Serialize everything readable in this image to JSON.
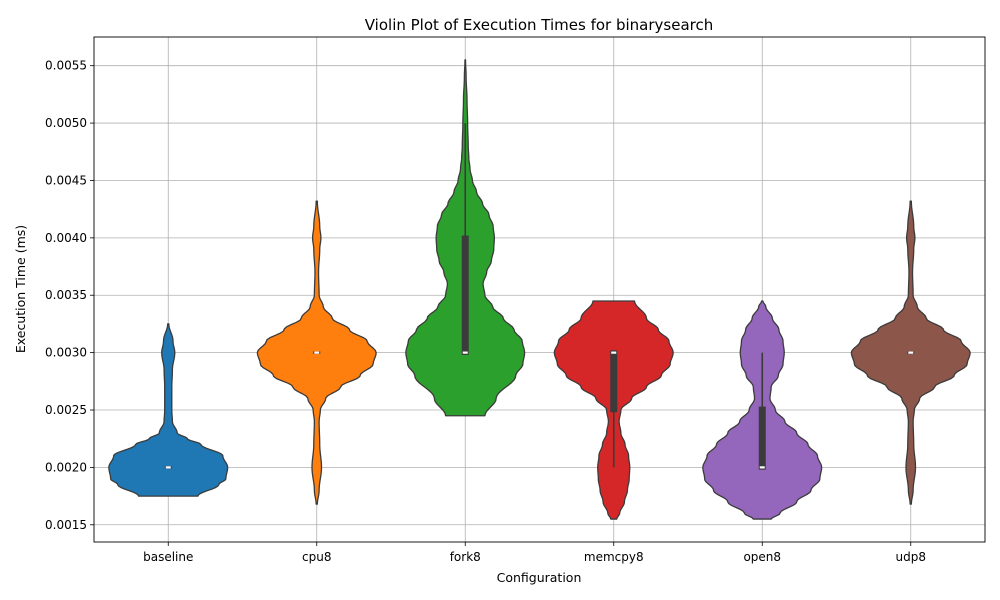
{
  "chart_data": {
    "type": "violin",
    "title": "Violin Plot of Execution Times for binarysearch",
    "xlabel": "Configuration",
    "ylabel": "Execution Time (ms)",
    "ylim": [
      0.00135,
      0.00575
    ],
    "yticks": [
      "0.0015",
      "0.0020",
      "0.0025",
      "0.0030",
      "0.0035",
      "0.0040",
      "0.0045",
      "0.0050",
      "0.0055"
    ],
    "grid": true,
    "categories": [
      "baseline",
      "cpu8",
      "fork8",
      "memcpy8",
      "open8",
      "udp8"
    ],
    "series": [
      {
        "category": "baseline",
        "color": "#1f77b4",
        "y_range": [
          0.00175,
          0.00325
        ],
        "density_profile": [
          [
            0.00175,
            0.5
          ],
          [
            0.00185,
            0.85
          ],
          [
            0.0019,
            0.97
          ],
          [
            0.002,
            1.0
          ],
          [
            0.0021,
            0.92
          ],
          [
            0.0022,
            0.55
          ],
          [
            0.00225,
            0.32
          ],
          [
            0.0023,
            0.15
          ],
          [
            0.0024,
            0.07
          ],
          [
            0.0025,
            0.06
          ],
          [
            0.0026,
            0.06
          ],
          [
            0.0027,
            0.06
          ],
          [
            0.00285,
            0.07
          ],
          [
            0.003,
            0.11
          ],
          [
            0.0031,
            0.08
          ],
          [
            0.00325,
            0.01
          ]
        ],
        "quartiles": [
          0.002,
          0.002,
          0.002
        ],
        "whiskers": [
          0.002,
          0.002
        ]
      },
      {
        "category": "cpu8",
        "color": "#ff7f0e",
        "y_range": [
          0.00168,
          0.00432
        ],
        "density_profile": [
          [
            0.00168,
            0.01
          ],
          [
            0.0018,
            0.04
          ],
          [
            0.002,
            0.08
          ],
          [
            0.0022,
            0.05
          ],
          [
            0.0024,
            0.04
          ],
          [
            0.0025,
            0.06
          ],
          [
            0.0026,
            0.15
          ],
          [
            0.0027,
            0.4
          ],
          [
            0.0028,
            0.73
          ],
          [
            0.0029,
            0.95
          ],
          [
            0.003,
            1.0
          ],
          [
            0.0031,
            0.85
          ],
          [
            0.0032,
            0.55
          ],
          [
            0.0033,
            0.26
          ],
          [
            0.0034,
            0.11
          ],
          [
            0.0035,
            0.04
          ],
          [
            0.0037,
            0.03
          ],
          [
            0.0039,
            0.05
          ],
          [
            0.004,
            0.07
          ],
          [
            0.0041,
            0.05
          ],
          [
            0.00432,
            0.01
          ]
        ],
        "quartiles": [
          0.003,
          0.003,
          0.003
        ],
        "whiskers": [
          0.003,
          0.003
        ]
      },
      {
        "category": "fork8",
        "color": "#2ca02c",
        "y_range": [
          0.00245,
          0.00555
        ],
        "density_profile": [
          [
            0.00245,
            0.33
          ],
          [
            0.0026,
            0.52
          ],
          [
            0.0028,
            0.85
          ],
          [
            0.0029,
            0.97
          ],
          [
            0.003,
            1.0
          ],
          [
            0.0031,
            0.96
          ],
          [
            0.0032,
            0.82
          ],
          [
            0.0033,
            0.64
          ],
          [
            0.0034,
            0.46
          ],
          [
            0.0035,
            0.33
          ],
          [
            0.0036,
            0.3
          ],
          [
            0.0037,
            0.36
          ],
          [
            0.0038,
            0.44
          ],
          [
            0.0039,
            0.48
          ],
          [
            0.004,
            0.49
          ],
          [
            0.0041,
            0.47
          ],
          [
            0.0042,
            0.4
          ],
          [
            0.0043,
            0.29
          ],
          [
            0.0044,
            0.19
          ],
          [
            0.0045,
            0.12
          ],
          [
            0.0046,
            0.08
          ],
          [
            0.0047,
            0.06
          ],
          [
            0.0048,
            0.05
          ],
          [
            0.005,
            0.04
          ],
          [
            0.0052,
            0.03
          ],
          [
            0.0054,
            0.015
          ],
          [
            0.00555,
            0.005
          ]
        ],
        "quartiles": [
          0.00298,
          0.003,
          0.00402
        ],
        "whiskers": [
          0.003,
          0.005
        ]
      },
      {
        "category": "memcpy8",
        "color": "#d62728",
        "y_range": [
          0.00155,
          0.00345
        ],
        "density_profile": [
          [
            0.00155,
            0.05
          ],
          [
            0.0016,
            0.1
          ],
          [
            0.0017,
            0.18
          ],
          [
            0.0018,
            0.23
          ],
          [
            0.0019,
            0.26
          ],
          [
            0.002,
            0.27
          ],
          [
            0.0021,
            0.25
          ],
          [
            0.0022,
            0.19
          ],
          [
            0.0023,
            0.12
          ],
          [
            0.0024,
            0.09
          ],
          [
            0.0025,
            0.12
          ],
          [
            0.0026,
            0.3
          ],
          [
            0.0027,
            0.55
          ],
          [
            0.0028,
            0.8
          ],
          [
            0.0029,
            0.95
          ],
          [
            0.003,
            1.0
          ],
          [
            0.0031,
            0.93
          ],
          [
            0.0032,
            0.75
          ],
          [
            0.0033,
            0.55
          ],
          [
            0.00345,
            0.35
          ]
        ],
        "quartiles": [
          0.00248,
          0.003,
          0.00302
        ],
        "whiskers": [
          0.002,
          0.003
        ]
      },
      {
        "category": "open8",
        "color": "#9467bd",
        "y_range": [
          0.00155,
          0.00345
        ],
        "density_profile": [
          [
            0.00155,
            0.15
          ],
          [
            0.0016,
            0.3
          ],
          [
            0.0017,
            0.58
          ],
          [
            0.0018,
            0.82
          ],
          [
            0.0019,
            0.97
          ],
          [
            0.002,
            1.0
          ],
          [
            0.0021,
            0.93
          ],
          [
            0.0022,
            0.77
          ],
          [
            0.0023,
            0.58
          ],
          [
            0.0024,
            0.38
          ],
          [
            0.0025,
            0.22
          ],
          [
            0.0026,
            0.13
          ],
          [
            0.0027,
            0.15
          ],
          [
            0.0028,
            0.27
          ],
          [
            0.0029,
            0.35
          ],
          [
            0.003,
            0.37
          ],
          [
            0.0031,
            0.35
          ],
          [
            0.0032,
            0.28
          ],
          [
            0.0033,
            0.17
          ],
          [
            0.0034,
            0.06
          ],
          [
            0.00345,
            0.01
          ]
        ],
        "quartiles": [
          0.00198,
          0.002,
          0.00253
        ],
        "whiskers": [
          0.002,
          0.003
        ]
      },
      {
        "category": "udp8",
        "color": "#8c564b",
        "y_range": [
          0.00168,
          0.00432
        ],
        "density_profile": [
          [
            0.00168,
            0.01
          ],
          [
            0.0018,
            0.04
          ],
          [
            0.002,
            0.08
          ],
          [
            0.0022,
            0.05
          ],
          [
            0.0024,
            0.04
          ],
          [
            0.0025,
            0.06
          ],
          [
            0.0026,
            0.15
          ],
          [
            0.0027,
            0.4
          ],
          [
            0.0028,
            0.73
          ],
          [
            0.0029,
            0.95
          ],
          [
            0.003,
            1.0
          ],
          [
            0.0031,
            0.85
          ],
          [
            0.0032,
            0.55
          ],
          [
            0.0033,
            0.26
          ],
          [
            0.0034,
            0.11
          ],
          [
            0.0035,
            0.04
          ],
          [
            0.0037,
            0.03
          ],
          [
            0.0039,
            0.05
          ],
          [
            0.004,
            0.07
          ],
          [
            0.0041,
            0.05
          ],
          [
            0.00432,
            0.01
          ]
        ],
        "quartiles": [
          0.003,
          0.003,
          0.003
        ],
        "whiskers": [
          0.003,
          0.003
        ]
      }
    ]
  }
}
